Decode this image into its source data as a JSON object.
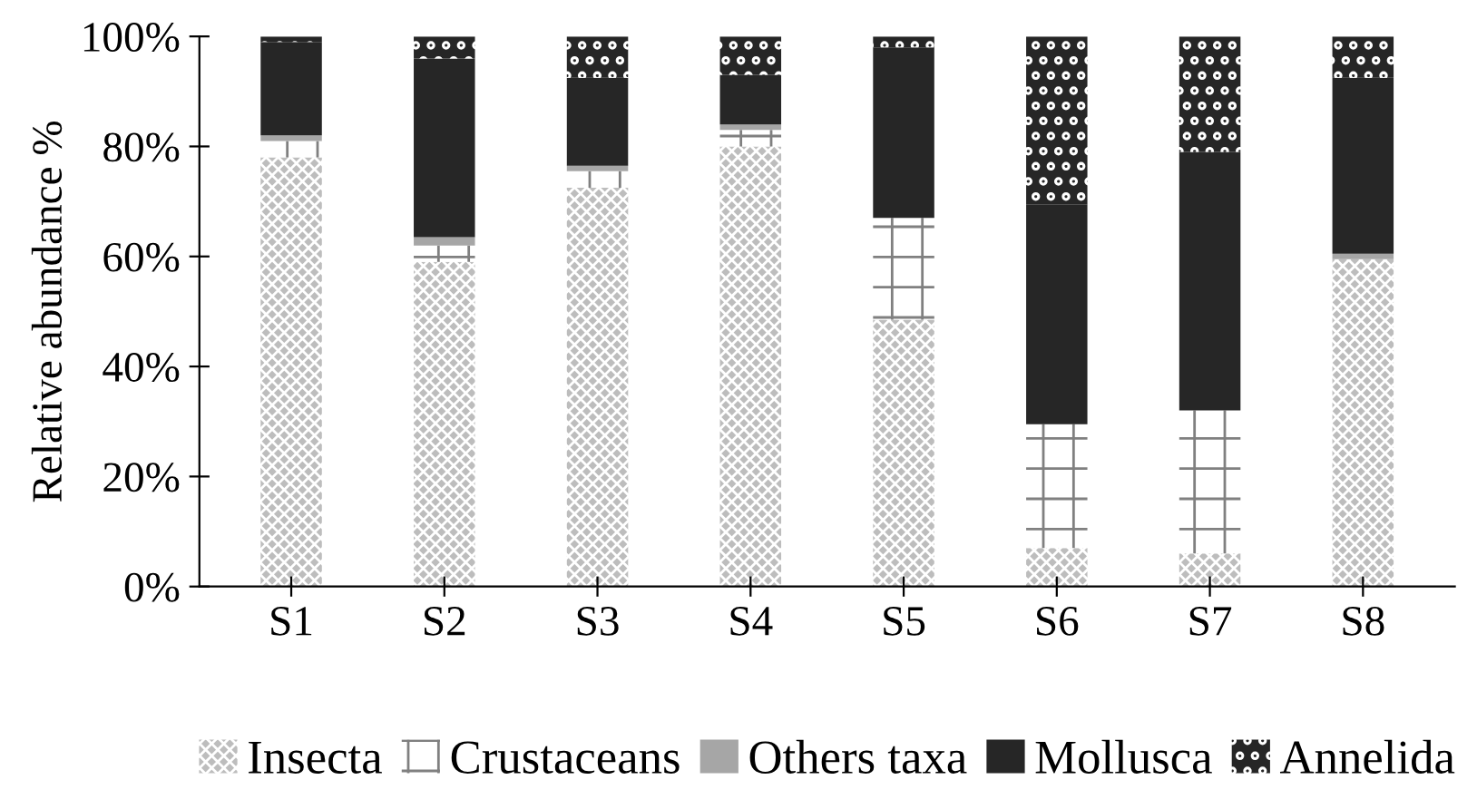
{
  "chart_data": {
    "type": "bar",
    "stacked": true,
    "ylabel": "Relative abundance %",
    "categories": [
      "S1",
      "S2",
      "S3",
      "S4",
      "S5",
      "S6",
      "S7",
      "S8"
    ],
    "series": [
      {
        "name": "Insecta",
        "color": "#bdbdbd",
        "values": [
          78,
          59,
          72.5,
          80,
          48.5,
          7,
          6,
          59.5
        ]
      },
      {
        "name": "Crustaceans",
        "color": "#ffffff",
        "values": [
          3,
          3,
          3,
          3,
          18.5,
          22.5,
          26,
          0
        ]
      },
      {
        "name": "Others taxa",
        "color": "#a6a6a6",
        "values": [
          1,
          1.5,
          1,
          1,
          0,
          0,
          0,
          1
        ]
      },
      {
        "name": "Mollusca",
        "color": "#262626",
        "values": [
          17,
          32.5,
          16,
          9,
          31,
          40,
          47,
          32
        ]
      },
      {
        "name": "Annelida",
        "color": "#262626",
        "values": [
          1,
          4,
          7.5,
          7,
          2,
          30.5,
          21,
          7.5
        ]
      }
    ],
    "ylim": [
      0,
      100
    ],
    "yticks": [
      {
        "value": 0,
        "label": "0%"
      },
      {
        "value": 20,
        "label": "20%"
      },
      {
        "value": 40,
        "label": "40%"
      },
      {
        "value": 60,
        "label": "60%"
      },
      {
        "value": 80,
        "label": "80%"
      },
      {
        "value": 100,
        "label": "100%"
      }
    ],
    "grid": false,
    "legend": "bottom"
  }
}
